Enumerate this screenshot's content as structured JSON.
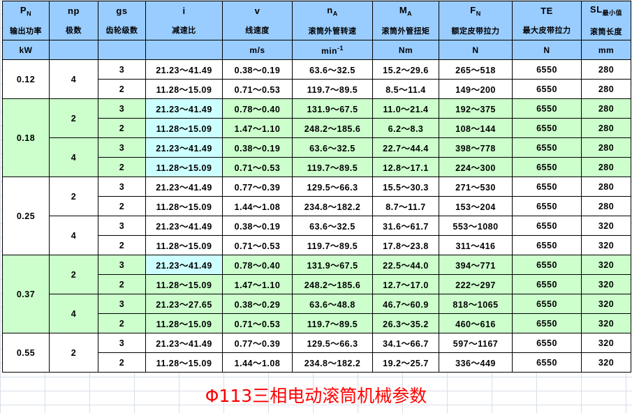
{
  "headers": [
    {
      "sym": "P",
      "sub": "N",
      "zh": "输出功率",
      "unit": "kW"
    },
    {
      "sym": "np",
      "sub": "",
      "zh": "极数",
      "unit": ""
    },
    {
      "sym": "gs",
      "sub": "",
      "zh": "齿轮级数",
      "unit": ""
    },
    {
      "sym": "i",
      "sub": "",
      "zh": "减速比",
      "unit": ""
    },
    {
      "sym": "v",
      "sub": "",
      "zh": "线速度",
      "unit": "m/s"
    },
    {
      "sym": "n",
      "sub": "A",
      "zh": "滚筒外管转速",
      "unit": "min",
      "unit_sup": "-1"
    },
    {
      "sym": "M",
      "sub": "A",
      "zh": "滚筒外管扭矩",
      "unit": "Nm"
    },
    {
      "sym": "F",
      "sub": "N",
      "zh": "额定皮带拉力",
      "unit": "N"
    },
    {
      "sym": "TE",
      "sub": "",
      "zh": "最大皮带拉力",
      "unit": "N"
    },
    {
      "sym": "SL",
      "sub": "最小值",
      "zh": "滚筒长度",
      "unit": "mm"
    }
  ],
  "colors": {
    "header": "#99ccff",
    "green": "#ccffcc",
    "cyan": "#ccffff",
    "title": "#ff0000"
  },
  "groups": [
    {
      "power": "0.12",
      "color": "white",
      "sub": [
        {
          "np": "4",
          "rows": [
            {
              "gs": "3",
              "i": "21.23～41.49",
              "v": "0.38～0.19",
              "nA": "63.6～32.5",
              "MA": "15.2～29.6",
              "FN": "265～518",
              "TE": "6550",
              "SL": "280"
            },
            {
              "gs": "2",
              "i": "11.28～15.09",
              "v": "0.71～0.53",
              "nA": "119.7～89.5",
              "MA": "8.5～11.4",
              "FN": "149～200",
              "TE": "6550",
              "SL": "280"
            }
          ]
        }
      ]
    },
    {
      "power": "0.18",
      "color": "green",
      "sub": [
        {
          "np": "2",
          "rows": [
            {
              "gs": "3",
              "i": "21.23～41.49",
              "v": "0.78～0.40",
              "nA": "131.9～67.5",
              "MA": "11.0～21.4",
              "FN": "192～375",
              "TE": "6550",
              "SL": "280",
              "cyan": true
            },
            {
              "gs": "2",
              "i": "11.28～15.09",
              "v": "1.47～1.10",
              "nA": "248.2～185.6",
              "MA": "6.2～8.3",
              "FN": "108～144",
              "TE": "6550",
              "SL": "280",
              "cyan": true
            }
          ]
        },
        {
          "np": "4",
          "rows": [
            {
              "gs": "3",
              "i": "21.23～41.49",
              "v": "0.38～0.19",
              "nA": "63.6～32.5",
              "MA": "22.7～44.4",
              "FN": "398～778",
              "TE": "6550",
              "SL": "280",
              "cyan": true
            },
            {
              "gs": "2",
              "i": "11.28～15.09",
              "v": "0.71～0.53",
              "nA": "119.7～89.5",
              "MA": "12.8～17.1",
              "FN": "224～300",
              "TE": "6550",
              "SL": "280",
              "cyan": true
            }
          ]
        }
      ]
    },
    {
      "power": "0.25",
      "color": "white",
      "sub": [
        {
          "np": "2",
          "rows": [
            {
              "gs": "3",
              "i": "21.23～41.49",
              "v": "0.77～0.39",
              "nA": "129.5～66.3",
              "MA": "15.5～30.3",
              "FN": "271～530",
              "TE": "6550",
              "SL": "280"
            },
            {
              "gs": "2",
              "i": "11.28～15.09",
              "v": "1.44～1.08",
              "nA": "234.8～182.2",
              "MA": "8.7～11.7",
              "FN": "153～204",
              "TE": "6550",
              "SL": "280"
            }
          ]
        },
        {
          "np": "4",
          "rows": [
            {
              "gs": "3",
              "i": "21.23～41.49",
              "v": "0.38～0.19",
              "nA": "63.6～32.5",
              "MA": "31.6～61.7",
              "FN": "553～1080",
              "TE": "6550",
              "SL": "320"
            },
            {
              "gs": "2",
              "i": "11.28～15.09",
              "v": "0.71～0.53",
              "nA": "119.7～89.5",
              "MA": "17.8～23.8",
              "FN": "311～416",
              "TE": "6550",
              "SL": "320"
            }
          ]
        }
      ]
    },
    {
      "power": "0.37",
      "color": "green",
      "sub": [
        {
          "np": "2",
          "rows": [
            {
              "gs": "3",
              "i": "21.23～41.49",
              "v": "0.78～0.40",
              "nA": "131.9～67.5",
              "MA": "22.5～44.0",
              "FN": "394～771",
              "TE": "6550",
              "SL": "320",
              "cyan": true
            },
            {
              "gs": "2",
              "i": "11.28～15.09",
              "v": "1.47～1.10",
              "nA": "248.2～185.6",
              "MA": "12.7～17.0",
              "FN": "222～297",
              "TE": "6550",
              "SL": "320"
            }
          ]
        },
        {
          "np": "4",
          "rows": [
            {
              "gs": "3",
              "i": "21.23～27.65",
              "v": "0.38～0.29",
              "nA": "63.6～48.8",
              "MA": "46.7～60.9",
              "FN": "818～1065",
              "TE": "6550",
              "SL": "320"
            },
            {
              "gs": "2",
              "i": "11.28～15.09",
              "v": "0.71～0.53",
              "nA": "119.7～89.5",
              "MA": "26.3～35.2",
              "FN": "460～616",
              "TE": "6550",
              "SL": "320"
            }
          ]
        }
      ]
    },
    {
      "power": "0.55",
      "color": "white",
      "sub": [
        {
          "np": "2",
          "rows": [
            {
              "gs": "3",
              "i": "21.23～41.49",
              "v": "0.77～0.39",
              "nA": "129.5～66.3",
              "MA": "34.1～66.7",
              "FN": "597～1167",
              "TE": "6550",
              "SL": "320"
            },
            {
              "gs": "2",
              "i": "11.28～15.09",
              "v": "1.44～1.08",
              "nA": "234.8～182.2",
              "MA": "19.2～25.7",
              "FN": "336～449",
              "TE": "6550",
              "SL": "320"
            }
          ]
        }
      ]
    }
  ],
  "title": {
    "prefix": "Φ113",
    "text": "三相电动滚筒机械参数"
  }
}
